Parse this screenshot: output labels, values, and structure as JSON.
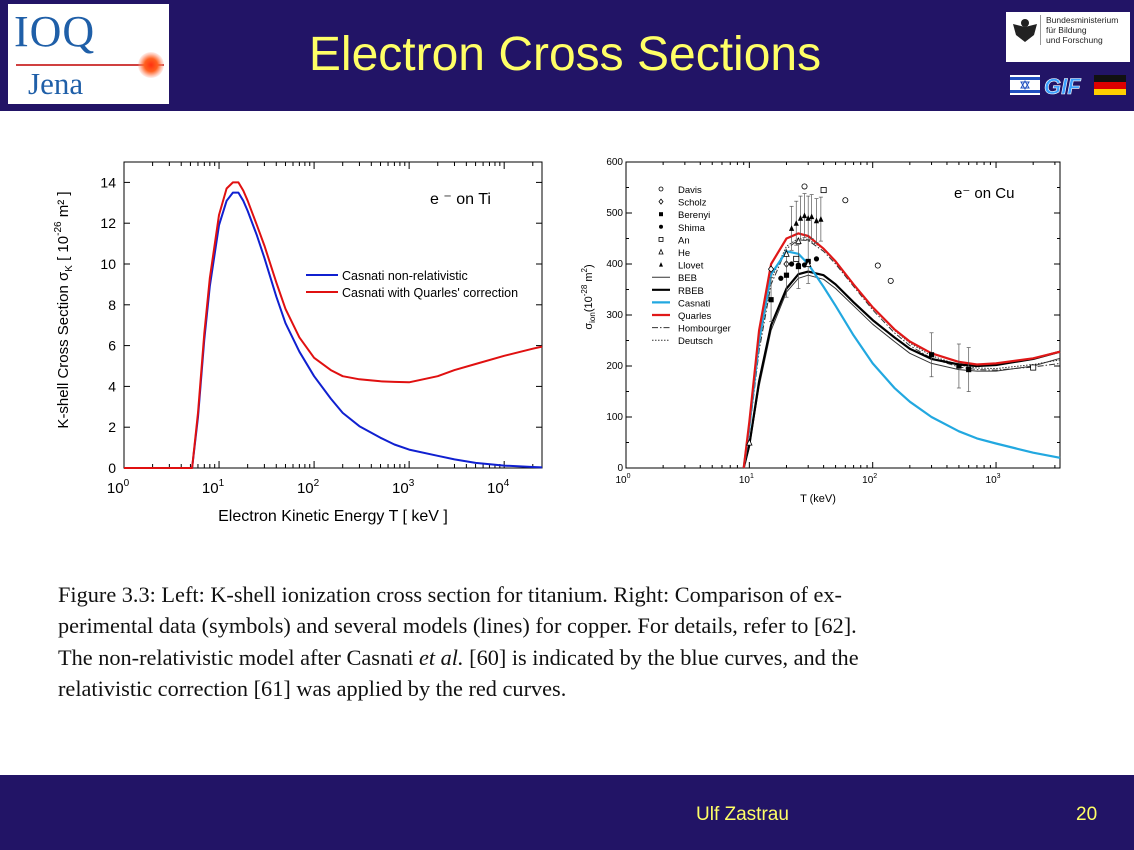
{
  "slide": {
    "title": "Electron Cross Sections",
    "logo_left": {
      "top": "IOQ",
      "bottom": "Jena"
    },
    "logo_right": {
      "ministry": [
        "Bundesministerium",
        "für Bildung",
        "und Forschung"
      ],
      "gif": "GIF"
    },
    "footer_name": "Ulf Zastrau",
    "page_number": "20",
    "caption": {
      "lines": [
        "Figure 3.3: Left: K-shell ionization cross section for titanium. Right: Comparison of ex-",
        "perimental data (symbols) and several models (lines) for copper. For details, refer to [62].",
        "The non-relativistic model after Casnati",
        "et al.",
        "[60] is indicated by the blue curves, and the",
        "relativistic correction [61] was applied by the red curves."
      ]
    }
  },
  "chart_data": [
    {
      "type": "line",
      "annotation": "e ⁻ on Ti",
      "xlabel": "Electron Kinetic Energy T [ keV ]",
      "ylabel": "K-shell Cross Section σK [ 10-26 m² ]",
      "ylabel_parts": {
        "main": "K-shell Cross Section",
        "sym": "σ",
        "sub": "K",
        "open": "[ 10",
        "sup": "-26",
        "close": " m² ]"
      },
      "xscale": "log",
      "xlim": [
        1,
        25000
      ],
      "ylim": [
        0,
        15
      ],
      "xticks": [
        {
          "base": "10",
          "exp": "0"
        },
        {
          "base": "10",
          "exp": "1"
        },
        {
          "base": "10",
          "exp": "2"
        },
        {
          "base": "10",
          "exp": "3"
        },
        {
          "base": "10",
          "exp": "4"
        }
      ],
      "yticks": [
        "0",
        "2",
        "4",
        "6",
        "8",
        "10",
        "12",
        "14"
      ],
      "legend_position": "center-right",
      "series": [
        {
          "name": "Casnati non-relativistic",
          "color": "#1020d0",
          "x": [
            1,
            5,
            5.2,
            6,
            7,
            8,
            10,
            12,
            14,
            16,
            18,
            20,
            25,
            30,
            40,
            50,
            70,
            100,
            150,
            200,
            300,
            500,
            700,
            1000,
            2000,
            3000,
            5000,
            10000,
            20000,
            25000
          ],
          "y": [
            0,
            0,
            0,
            2.5,
            6.3,
            8.9,
            11.9,
            13.1,
            13.5,
            13.5,
            13.1,
            12.6,
            11.4,
            10.3,
            8.4,
            7.1,
            5.7,
            4.5,
            3.4,
            2.7,
            2.05,
            1.48,
            1.15,
            0.9,
            0.6,
            0.42,
            0.25,
            0.12,
            0.05,
            0.03
          ]
        },
        {
          "name": "Casnati with Quarles' correction",
          "color": "#e01010",
          "x": [
            1,
            5,
            5.2,
            6,
            7,
            8,
            10,
            12,
            14,
            16,
            18,
            20,
            25,
            30,
            40,
            50,
            70,
            100,
            150,
            200,
            300,
            500,
            700,
            1000,
            2000,
            3000,
            5000,
            10000,
            20000,
            25000
          ],
          "y": [
            0,
            0,
            0,
            2.7,
            6.6,
            9.3,
            12.4,
            13.7,
            14.0,
            14.0,
            13.6,
            13.1,
            11.9,
            10.9,
            9.1,
            7.8,
            6.4,
            5.4,
            4.8,
            4.5,
            4.35,
            4.25,
            4.22,
            4.2,
            4.5,
            4.8,
            5.1,
            5.5,
            5.85,
            5.95
          ]
        }
      ]
    },
    {
      "type": "line",
      "annotation": "e⁻ on Cu",
      "xlabel": "T (keV)",
      "ylabel": "σion(10-28 m2)",
      "ylabel_parts": {
        "sym": "σ",
        "sub": "ion",
        "open": "(10",
        "sup": "-28",
        "mid": " m",
        "sup2": "2",
        "close": ")"
      },
      "xscale": "log",
      "xlim": [
        1,
        3300
      ],
      "ylim": [
        0,
        600
      ],
      "xticks": [
        {
          "base": "10",
          "exp": "0"
        },
        {
          "base": "10",
          "exp": "1"
        },
        {
          "base": "10",
          "exp": "2"
        },
        {
          "base": "10",
          "exp": "3"
        }
      ],
      "yticks": [
        "0",
        "100",
        "200",
        "300",
        "400",
        "500",
        "600"
      ],
      "legend_position": "top-left",
      "series": [
        {
          "name": "BEB",
          "color": "#333333",
          "style": "thin",
          "x": [
            9,
            10,
            12,
            15,
            20,
            25,
            30,
            40,
            50,
            70,
            100,
            150,
            200,
            300,
            500,
            700,
            1000,
            2000,
            3300
          ],
          "y": [
            0,
            40,
            160,
            270,
            345,
            372,
            378,
            370,
            352,
            318,
            282,
            248,
            225,
            205,
            193,
            190,
            190,
            200,
            215
          ]
        },
        {
          "name": "RBEB",
          "color": "#000000",
          "style": "thick",
          "x": [
            9,
            10,
            12,
            15,
            20,
            25,
            30,
            40,
            50,
            70,
            100,
            150,
            200,
            300,
            500,
            700,
            1000,
            2000,
            3300
          ],
          "y": [
            0,
            45,
            170,
            280,
            352,
            380,
            385,
            378,
            360,
            325,
            290,
            256,
            234,
            214,
            203,
            200,
            202,
            214,
            228
          ]
        },
        {
          "name": "Casnati",
          "color": "#22a8e0",
          "style": "thick",
          "x": [
            9,
            10,
            12,
            15,
            20,
            25,
            30,
            40,
            50,
            70,
            100,
            150,
            200,
            300,
            500,
            700,
            1000,
            2000,
            3300
          ],
          "y": [
            0,
            80,
            250,
            380,
            425,
            420,
            400,
            355,
            318,
            260,
            205,
            157,
            130,
            100,
            72,
            58,
            48,
            30,
            20
          ]
        },
        {
          "name": "Quarles",
          "color": "#e01818",
          "style": "thick",
          "x": [
            9,
            10,
            12,
            15,
            20,
            25,
            30,
            40,
            50,
            70,
            100,
            150,
            200,
            300,
            500,
            700,
            1000,
            2000,
            3300
          ],
          "y": [
            0,
            90,
            270,
            400,
            450,
            460,
            455,
            430,
            405,
            360,
            315,
            272,
            248,
            225,
            208,
            203,
            205,
            215,
            228
          ]
        },
        {
          "name": "Hombourger",
          "color": "#333333",
          "style": "dashdot",
          "x": [
            9,
            10,
            12,
            15,
            20,
            25,
            30,
            40,
            50,
            70,
            100,
            150,
            200,
            300,
            500,
            700,
            1000,
            2000,
            3300
          ],
          "y": [
            0,
            70,
            230,
            360,
            430,
            447,
            446,
            425,
            400,
            356,
            310,
            265,
            240,
            215,
            198,
            193,
            192,
            198,
            205
          ]
        },
        {
          "name": "Deutsch",
          "color": "#333333",
          "style": "dotted",
          "x": [
            9,
            10,
            12,
            15,
            20,
            25,
            30,
            40,
            50,
            70,
            100,
            150,
            200,
            300,
            500,
            700,
            1000,
            2000,
            3300
          ],
          "y": [
            0,
            75,
            240,
            370,
            435,
            450,
            448,
            430,
            405,
            360,
            315,
            270,
            245,
            220,
            202,
            196,
            195,
            203,
            212
          ]
        }
      ],
      "points": [
        {
          "name": "Davis",
          "symbol": "circle-open",
          "x": [
            28,
            60,
            110,
            140
          ],
          "y": [
            552,
            525,
            397,
            367
          ]
        },
        {
          "name": "Scholz",
          "symbol": "diamond-open",
          "x": [
            15,
            20
          ],
          "y": [
            390,
            400
          ]
        },
        {
          "name": "Berenyi",
          "symbol": "square-filled",
          "x": [
            15,
            20,
            25,
            30,
            300,
            500,
            600
          ],
          "y": [
            330,
            378,
            395,
            405,
            222,
            200,
            193
          ]
        },
        {
          "name": "Shima",
          "symbol": "circle-filled",
          "x": [
            18,
            22,
            25,
            28,
            35
          ],
          "y": [
            372,
            400,
            398,
            398,
            410
          ]
        },
        {
          "name": "An",
          "symbol": "square-open",
          "x": [
            24,
            40,
            2000
          ],
          "y": [
            410,
            545,
            197
          ]
        },
        {
          "name": "He",
          "symbol": "triangle-open",
          "x": [
            10,
            20,
            25,
            30
          ],
          "y": [
            50,
            420,
            445,
            400
          ]
        },
        {
          "name": "Llovet",
          "symbol": "triangle-filled",
          "x": [
            22,
            24,
            26,
            28,
            30,
            32,
            35,
            38
          ],
          "y": [
            470,
            480,
            490,
            495,
            490,
            493,
            485,
            488
          ]
        }
      ]
    }
  ]
}
